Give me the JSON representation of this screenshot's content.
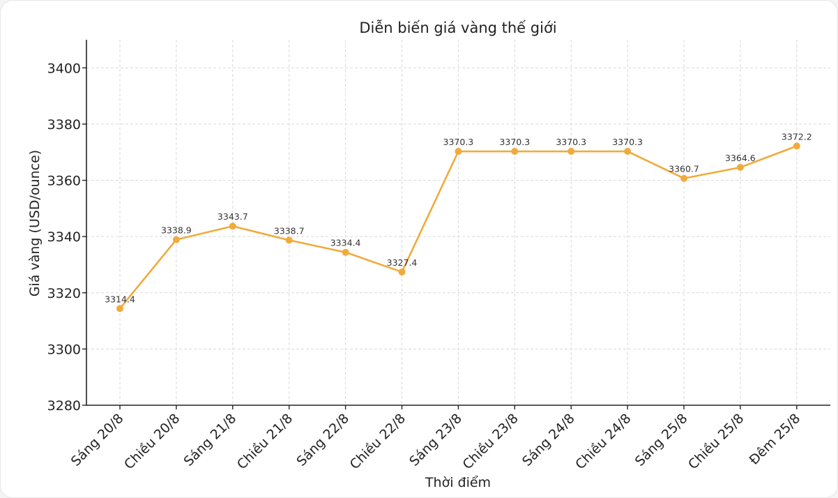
{
  "chart_data": {
    "type": "line",
    "title": "Diễn biến giá vàng thế giới",
    "xlabel": "Thời điểm",
    "ylabel": "Giá vàng (USD/ounce)",
    "categories": [
      "Sáng 20/8",
      "Chiều 20/8",
      "Sáng 21/8",
      "Chiều 21/8",
      "Sáng 22/8",
      "Chiều 22/8",
      "Sáng 23/8",
      "Chiều 23/8",
      "Sáng 24/8",
      "Chiều 24/8",
      "Sáng 25/8",
      "Chiều 25/8",
      "Đêm 25/8"
    ],
    "series": [
      {
        "values": [
          3314.4,
          3338.9,
          3343.7,
          3338.7,
          3334.4,
          3327.4,
          3370.3,
          3370.3,
          3370.3,
          3370.3,
          3360.7,
          3364.6,
          3372.2
        ],
        "labels": [
          "3314.4",
          "3338.9",
          "3343.7",
          "3338.7",
          "3334.4",
          "3327.4",
          "3370.3",
          "3370.3",
          "3370.3",
          "3370.3",
          "3360.7",
          "3364.6",
          "3372.2"
        ],
        "color": "#f0ab3c"
      }
    ],
    "ylim": [
      3280,
      3410
    ],
    "yticks": [
      "3280",
      "3300",
      "3320",
      "3340",
      "3360",
      "3380",
      "3400"
    ],
    "grid": true,
    "legend": "none"
  }
}
